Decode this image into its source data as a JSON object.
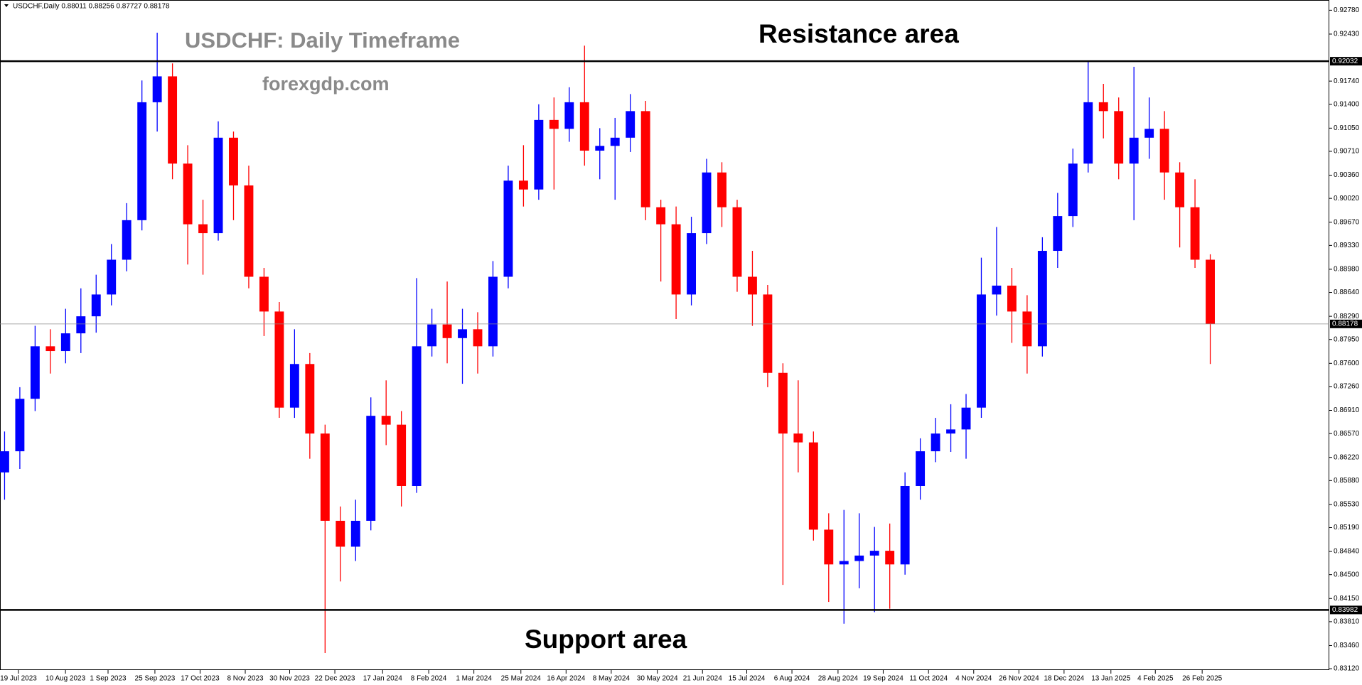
{
  "chart_data": {
    "type": "candlestick",
    "symbol_info": "USDCHF,Daily  0.88011 0.88256 0.87727 0.88178",
    "title": "USDCHF: Daily Timeframe",
    "subtitle": "forexgdp.com",
    "annotations": [
      "Resistance area",
      "Support area"
    ],
    "up_color": "#0000ff",
    "down_color": "#ff0000",
    "open": [
      0.86,
      0.8631,
      0.8708,
      0.8785,
      0.8778,
      0.8804,
      0.8829,
      0.8861,
      0.8912,
      0.897,
      0.9143,
      0.9181,
      0.9053,
      0.8964,
      0.8951,
      0.9091,
      0.9021,
      0.8887,
      0.8836,
      0.8695,
      0.8759,
      0.8657,
      0.8529,
      0.8491,
      0.8529,
      0.8683,
      0.867,
      0.858,
      0.8785,
      0.8817,
      0.8797,
      0.881,
      0.8785,
      0.8887,
      0.9028,
      0.9015,
      0.9117,
      0.9104,
      0.9143,
      0.9072,
      0.9079,
      0.9091,
      0.913,
      0.8989,
      0.8964,
      0.8861,
      0.8951,
      0.904,
      0.8989,
      0.8887,
      0.8861,
      0.8746,
      0.8657,
      0.8644,
      0.8516,
      0.8465,
      0.847,
      0.8478,
      0.8485,
      0.8465,
      0.858,
      0.8631,
      0.8657,
      0.8663,
      0.8695,
      0.8861,
      0.8874,
      0.8836,
      0.8785,
      0.8925,
      0.8976,
      0.9053,
      0.9143,
      0.913,
      0.9053,
      0.9091,
      0.9104,
      0.904,
      0.8989,
      0.8912
    ],
    "high": [
      0.866,
      0.8725,
      0.8815,
      0.881,
      0.884,
      0.887,
      0.889,
      0.8935,
      0.8995,
      0.9175,
      0.9245,
      0.92,
      0.908,
      0.9,
      0.9115,
      0.91,
      0.905,
      0.89,
      0.885,
      0.881,
      0.8775,
      0.867,
      0.855,
      0.856,
      0.871,
      0.8735,
      0.869,
      0.8885,
      0.884,
      0.888,
      0.884,
      0.8835,
      0.891,
      0.905,
      0.908,
      0.914,
      0.915,
      0.9165,
      0.9226,
      0.9105,
      0.912,
      0.9155,
      0.9145,
      0.9,
      0.899,
      0.8975,
      0.906,
      0.9055,
      0.9,
      0.8925,
      0.8875,
      0.876,
      0.8735,
      0.866,
      0.854,
      0.8545,
      0.854,
      0.852,
      0.8525,
      0.86,
      0.865,
      0.868,
      0.87,
      0.8715,
      0.8915,
      0.896,
      0.89,
      0.886,
      0.8945,
      0.901,
      0.9075,
      0.9203,
      0.917,
      0.915,
      0.9195,
      0.915,
      0.913,
      0.9055,
      0.903,
      0.892
    ],
    "low": [
      0.856,
      0.8605,
      0.869,
      0.8745,
      0.876,
      0.8775,
      0.8805,
      0.8845,
      0.8895,
      0.8955,
      0.91,
      0.903,
      0.8905,
      0.889,
      0.894,
      0.897,
      0.887,
      0.88,
      0.868,
      0.868,
      0.862,
      0.8335,
      0.844,
      0.847,
      0.8515,
      0.864,
      0.855,
      0.857,
      0.877,
      0.876,
      0.873,
      0.8745,
      0.877,
      0.887,
      0.899,
      0.9,
      0.9015,
      0.9085,
      0.905,
      0.903,
      0.9,
      0.907,
      0.897,
      0.888,
      0.8825,
      0.8845,
      0.8935,
      0.896,
      0.8865,
      0.8815,
      0.8725,
      0.8435,
      0.86,
      0.85,
      0.841,
      0.8378,
      0.843,
      0.8395,
      0.84,
      0.845,
      0.856,
      0.8615,
      0.863,
      0.862,
      0.868,
      0.883,
      0.879,
      0.8745,
      0.877,
      0.89,
      0.896,
      0.904,
      0.909,
      0.903,
      0.897,
      0.906,
      0.9,
      0.893,
      0.89,
      0.8759
    ],
    "close": [
      0.8631,
      0.8708,
      0.8785,
      0.8778,
      0.8804,
      0.8829,
      0.8861,
      0.8912,
      0.897,
      0.9143,
      0.9181,
      0.9053,
      0.8964,
      0.8951,
      0.9091,
      0.9021,
      0.8887,
      0.8836,
      0.8695,
      0.8759,
      0.8657,
      0.8529,
      0.8491,
      0.8529,
      0.8683,
      0.867,
      0.858,
      0.8785,
      0.8817,
      0.8797,
      0.881,
      0.8785,
      0.8887,
      0.9028,
      0.9015,
      0.9117,
      0.9104,
      0.9143,
      0.9072,
      0.9079,
      0.9091,
      0.913,
      0.8989,
      0.8964,
      0.8861,
      0.8951,
      0.904,
      0.8989,
      0.8887,
      0.8861,
      0.8746,
      0.8657,
      0.8644,
      0.8516,
      0.8465,
      0.847,
      0.8478,
      0.8485,
      0.8465,
      0.858,
      0.8631,
      0.8657,
      0.8663,
      0.8695,
      0.8861,
      0.8874,
      0.8836,
      0.8785,
      0.8925,
      0.8976,
      0.9053,
      0.9143,
      0.913,
      0.9053,
      0.9091,
      0.9104,
      0.904,
      0.8989,
      0.8912,
      0.8818
    ],
    "xlim": [
      -0.3,
      86.8
    ],
    "xticks": [
      {
        "value": 0.91,
        "label": "19 Jul 2023"
      },
      {
        "value": 3.99,
        "label": "10 Aug 2023"
      },
      {
        "value": 6.78,
        "label": "1 Sep 2023"
      },
      {
        "value": 9.85,
        "label": "25 Sep 2023"
      },
      {
        "value": 12.81,
        "label": "17 Oct 2023"
      },
      {
        "value": 15.77,
        "label": "8 Nov 2023"
      },
      {
        "value": 18.68,
        "label": "30 Nov 2023"
      },
      {
        "value": 21.64,
        "label": "22 Dec 2023"
      },
      {
        "value": 24.77,
        "label": "17 Jan 2024"
      },
      {
        "value": 27.79,
        "label": "8 Feb 2024"
      },
      {
        "value": 30.75,
        "label": "1 Mar 2024"
      },
      {
        "value": 33.83,
        "label": "25 Mar 2024"
      },
      {
        "value": 36.79,
        "label": "16 Apr 2024"
      },
      {
        "value": 39.75,
        "label": "8 May 2024"
      },
      {
        "value": 42.77,
        "label": "30 May 2024"
      },
      {
        "value": 45.73,
        "label": "21 Jun 2024"
      },
      {
        "value": 48.63,
        "label": "15 Jul 2024"
      },
      {
        "value": 51.59,
        "label": "6 Aug 2024"
      },
      {
        "value": 54.61,
        "label": "28 Aug 2024"
      },
      {
        "value": 57.57,
        "label": "19 Sep 2024"
      },
      {
        "value": 60.54,
        "label": "11 Oct 2024"
      },
      {
        "value": 63.5,
        "label": "4 Nov 2024"
      },
      {
        "value": 66.46,
        "label": "26 Nov 2024"
      },
      {
        "value": 69.42,
        "label": "18 Dec 2024"
      },
      {
        "value": 72.49,
        "label": "13 Jan 2025"
      },
      {
        "value": 75.4,
        "label": "4 Feb 2025"
      },
      {
        "value": 78.47,
        "label": "26 Feb 2025"
      }
    ],
    "ylim": [
      0.831,
      0.9293
    ],
    "yticks": [
      {
        "value": 0.9278,
        "label": "0.92780"
      },
      {
        "value": 0.9243,
        "label": "0.92430"
      },
      {
        "value": 0.9174,
        "label": "0.91740"
      },
      {
        "value": 0.914,
        "label": "0.91400"
      },
      {
        "value": 0.9105,
        "label": "0.91050"
      },
      {
        "value": 0.9071,
        "label": "0.90710"
      },
      {
        "value": 0.9036,
        "label": "0.90360"
      },
      {
        "value": 0.9002,
        "label": "0.90020"
      },
      {
        "value": 0.8967,
        "label": "0.89670"
      },
      {
        "value": 0.8933,
        "label": "0.89330"
      },
      {
        "value": 0.8898,
        "label": "0.88980"
      },
      {
        "value": 0.8864,
        "label": "0.88640"
      },
      {
        "value": 0.8829,
        "label": "0.88290"
      },
      {
        "value": 0.8795,
        "label": "0.87950"
      },
      {
        "value": 0.876,
        "label": "0.87600"
      },
      {
        "value": 0.8726,
        "label": "0.87260"
      },
      {
        "value": 0.8691,
        "label": "0.86910"
      },
      {
        "value": 0.8657,
        "label": "0.86570"
      },
      {
        "value": 0.8622,
        "label": "0.86220"
      },
      {
        "value": 0.8588,
        "label": "0.85880"
      },
      {
        "value": 0.8553,
        "label": "0.85530"
      },
      {
        "value": 0.8519,
        "label": "0.85190"
      },
      {
        "value": 0.8484,
        "label": "0.84840"
      },
      {
        "value": 0.845,
        "label": "0.84500"
      },
      {
        "value": 0.8415,
        "label": "0.84150"
      },
      {
        "value": 0.8381,
        "label": "0.83810"
      },
      {
        "value": 0.8346,
        "label": "0.83460"
      },
      {
        "value": 0.8312,
        "label": "0.83120"
      }
    ],
    "levels": [
      {
        "value": 0.92032,
        "label": "0.92032",
        "color": "#000000",
        "width": 2.5
      },
      {
        "value": 0.88178,
        "label": "0.88178",
        "color": "#8c8c8c",
        "width": 0.8
      },
      {
        "value": 0.83982,
        "label": "0.83982",
        "color": "#000000",
        "width": 2.5
      }
    ]
  }
}
